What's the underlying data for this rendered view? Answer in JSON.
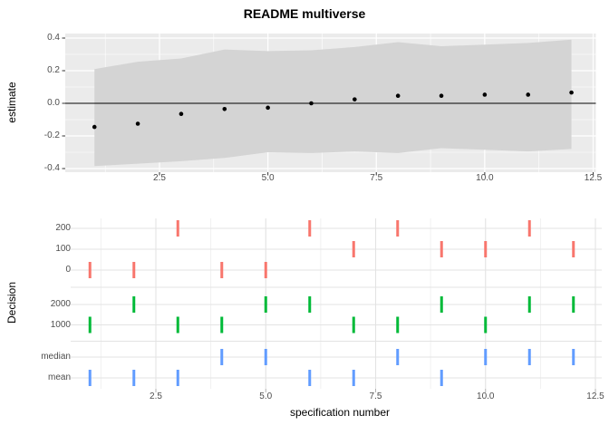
{
  "title": "README multiverse",
  "colors": {
    "panel_background": "#EBEBEB",
    "grid_white": "#FFFFFF",
    "grid_gray": "#E3E3E3",
    "grid_gray_minor": "#F0F0F0",
    "ribbon": "#D4D4D4",
    "point": "#000000",
    "zero_line": "#000000",
    "tick_text": "#4D4D4D",
    "red": "#F8766D",
    "green": "#00BA38",
    "blue": "#619CFF"
  },
  "chart_data": [
    {
      "type": "scatter",
      "panel": "estimate",
      "ylabel": "estimate",
      "x": [
        1,
        2,
        3,
        4,
        5,
        6,
        7,
        8,
        9,
        10,
        11,
        12
      ],
      "y": [
        -0.145,
        -0.125,
        -0.065,
        -0.035,
        -0.027,
        0.0,
        0.024,
        0.046,
        0.046,
        0.053,
        0.053,
        0.066
      ],
      "ci_upper": [
        0.21,
        0.255,
        0.275,
        0.33,
        0.32,
        0.325,
        0.345,
        0.375,
        0.35,
        0.36,
        0.37,
        0.39
      ],
      "ci_lower": [
        -0.385,
        -0.37,
        -0.355,
        -0.335,
        -0.3,
        -0.305,
        -0.295,
        -0.305,
        -0.275,
        -0.285,
        -0.295,
        -0.28
      ],
      "hline": 0,
      "ytick_values": [
        0.4,
        0.2,
        0.0,
        -0.2,
        -0.4
      ],
      "ytick_labels": [
        "0.4",
        "0.2",
        "0.0",
        "-0.2",
        "-0.4"
      ],
      "xtick_values": [
        2.5,
        5.0,
        7.5,
        10.0,
        12.5
      ],
      "xtick_labels": [
        "2.5",
        "5.0",
        "7.5",
        "10.0",
        "12.5"
      ],
      "ylim": [
        -0.42,
        0.43
      ],
      "xlim": [
        0.33,
        12.56
      ],
      "grid": "major-white-on-gray with minors"
    },
    {
      "type": "tick-marks",
      "panel": "decision",
      "ylabel": "Decision",
      "xlabel": "specification number",
      "rows": [
        {
          "label": "200",
          "color": "red",
          "x": [
            3,
            6,
            8,
            11
          ]
        },
        {
          "label": "100",
          "color": "red",
          "x": [
            7,
            9,
            10,
            12
          ]
        },
        {
          "label": "0",
          "color": "red",
          "x": [
            1,
            2,
            4,
            5
          ]
        },
        {
          "label": "2000",
          "color": "green",
          "x": [
            2,
            5,
            6,
            9,
            11,
            12
          ]
        },
        {
          "label": "1000",
          "color": "green",
          "x": [
            1,
            3,
            4,
            7,
            8,
            10
          ]
        },
        {
          "label": "median",
          "color": "blue",
          "x": [
            4,
            5,
            8,
            10,
            11,
            12
          ]
        },
        {
          "label": "mean",
          "color": "blue",
          "x": [
            1,
            2,
            3,
            6,
            7,
            9
          ]
        }
      ],
      "xtick_values": [
        2.5,
        5.0,
        7.5,
        10.0,
        12.5
      ],
      "xtick_labels": [
        "2.5",
        "5.0",
        "7.5",
        "10.0",
        "12.5"
      ],
      "xlim": [
        0.71,
        12.64
      ],
      "grid": "gray-on-white with minors"
    }
  ]
}
